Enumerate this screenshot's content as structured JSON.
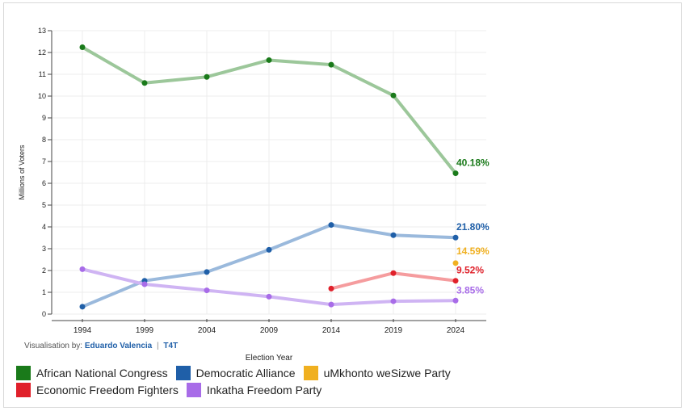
{
  "chart_data": {
    "type": "line",
    "xlabel": "Election Year",
    "ylabel": "Millions of Voters",
    "x": [
      1994,
      1999,
      2004,
      2009,
      2014,
      2019,
      2024
    ],
    "ylim": [
      0,
      13
    ],
    "yticks": [
      0,
      1,
      2,
      3,
      4,
      5,
      6,
      7,
      8,
      9,
      10,
      11,
      12,
      13
    ],
    "grid": true,
    "legend_position": "bottom",
    "series": [
      {
        "name": "African National Congress",
        "color": "#1a7a1a",
        "line_color": "#9cc79a",
        "x": [
          1994,
          1999,
          2004,
          2009,
          2014,
          2019,
          2024
        ],
        "values": [
          12.24,
          10.6,
          10.88,
          11.65,
          11.44,
          10.03,
          6.46
        ],
        "end_label": "40.18%"
      },
      {
        "name": "Democratic Alliance",
        "color": "#1f5fa8",
        "line_color": "#9ab9dc",
        "x": [
          1994,
          1999,
          2004,
          2009,
          2014,
          2019,
          2024
        ],
        "values": [
          0.34,
          1.53,
          1.93,
          2.95,
          4.09,
          3.62,
          3.51
        ],
        "end_label": "21.80%"
      },
      {
        "name": "uMkhonto weSizwe Party",
        "color": "#f0b020",
        "line_color": "#f0b020",
        "x": [
          2024
        ],
        "values": [
          2.34
        ],
        "end_label": "14.59%"
      },
      {
        "name": "Economic Freedom Fighters",
        "color": "#e0202a",
        "line_color": "#f59c9e",
        "x": [
          2014,
          2019,
          2024
        ],
        "values": [
          1.17,
          1.88,
          1.53
        ],
        "end_label": "9.52%"
      },
      {
        "name": "Inkatha Freedom Party",
        "color": "#a86ce8",
        "line_color": "#cfb4f3",
        "x": [
          1994,
          1999,
          2004,
          2009,
          2014,
          2019,
          2024
        ],
        "values": [
          2.06,
          1.37,
          1.09,
          0.8,
          0.44,
          0.59,
          0.62
        ],
        "end_label": "3.85%"
      }
    ]
  },
  "credit": {
    "prefix": "Visualisation by:",
    "author": "Eduardo Valencia",
    "separator": "|",
    "org": "T4T"
  },
  "legend": {
    "items": [
      {
        "label": "African National Congress",
        "color": "#1a7a1a"
      },
      {
        "label": "Democratic Alliance",
        "color": "#1f5fa8"
      },
      {
        "label": "uMkhonto weSizwe Party",
        "color": "#f0b020"
      },
      {
        "label": "Economic Freedom Fighters",
        "color": "#e0202a"
      },
      {
        "label": "Inkatha Freedom Party",
        "color": "#a86ce8"
      }
    ]
  }
}
